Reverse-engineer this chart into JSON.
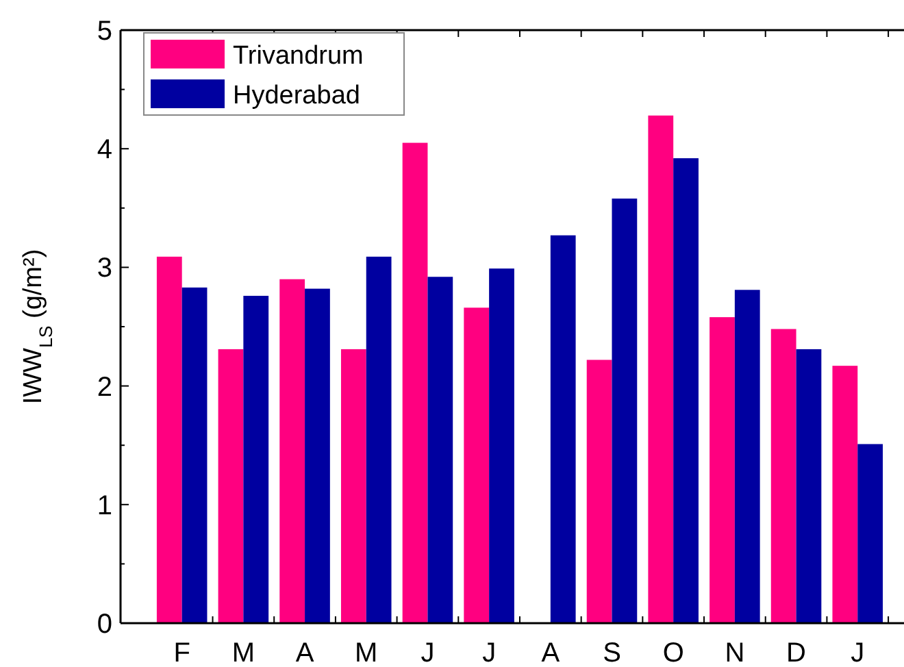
{
  "chart_data": {
    "type": "bar",
    "ylabel": "IWW$_{LS}$ (g/m²)",
    "categories": [
      "F",
      "M",
      "A",
      "M",
      "J",
      "J",
      "A",
      "S",
      "O",
      "N",
      "D",
      "J"
    ],
    "series": [
      {
        "name": "Trivandrum",
        "color": "#ff0080",
        "values": [
          3.09,
          2.31,
          2.9,
          2.31,
          4.05,
          2.66,
          null,
          2.22,
          4.28,
          2.58,
          2.48,
          2.17
        ]
      },
      {
        "name": "Hyderabad",
        "color": "#0000a0",
        "values": [
          2.83,
          2.76,
          2.82,
          3.09,
          2.92,
          2.99,
          3.27,
          3.58,
          3.92,
          2.81,
          2.31,
          1.51
        ]
      }
    ],
    "ylim": [
      0,
      5
    ],
    "yticks": [
      0,
      1,
      2,
      3,
      4,
      5
    ],
    "grid": false,
    "legend": "top left"
  }
}
